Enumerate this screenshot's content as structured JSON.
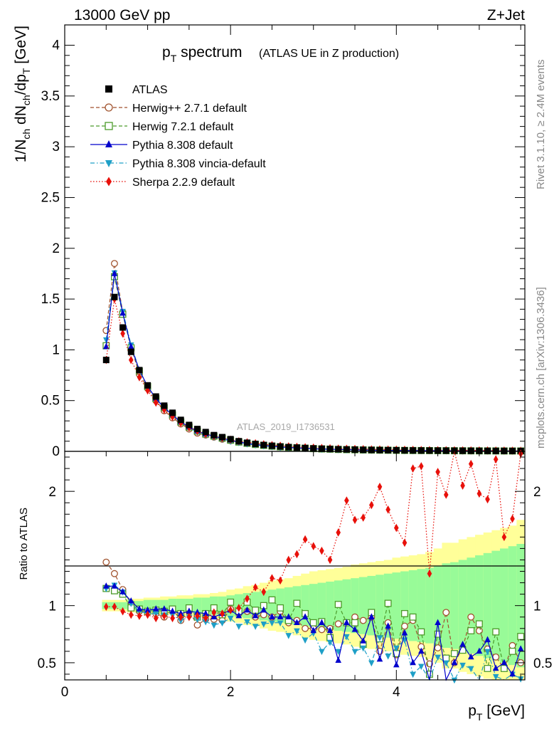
{
  "header": {
    "left": "13000 GeV pp",
    "right": "Z+Jet"
  },
  "side_labels": {
    "rivet": "Rivet 3.1.10, ≥ 2.4M events",
    "mcplots": "mcplots.cern.ch [arXiv:1306.3436]"
  },
  "watermark": "ATLAS_2019_I1736531",
  "legend": [
    {
      "key": "atlas",
      "label": "ATLAS",
      "color": "#000000",
      "marker": "square-filled",
      "line": "none"
    },
    {
      "key": "herwigpp",
      "label": "Herwig++ 2.7.1 default",
      "color": "#a0522d",
      "marker": "circle-open",
      "line": "dashed"
    },
    {
      "key": "herwig7",
      "label": "Herwig 7.2.1 default",
      "color": "#4c9a2a",
      "marker": "square-open",
      "line": "dashed"
    },
    {
      "key": "pythia",
      "label": "Pythia 8.308 default",
      "color": "#0000cc",
      "marker": "triangle-up-filled",
      "line": "solid"
    },
    {
      "key": "vincia",
      "label": "Pythia 8.308 vincia-default",
      "color": "#1e9fc7",
      "marker": "triangle-down-filled",
      "line": "dashdot"
    },
    {
      "key": "sherpa",
      "label": "Sherpa 2.2.9 default",
      "color": "#e8100a",
      "marker": "diamond-filled",
      "line": "dotted"
    }
  ],
  "chart_data": [
    {
      "type": "scatter",
      "title_main": "p",
      "title_sub": "T",
      "title_rest": " spectrum",
      "title_note": "(ATLAS UE in Z production)",
      "ylabel": "1/N_ch dN_ch/dp_T [GeV]",
      "ylim": [
        0,
        4.2
      ],
      "yticks": [
        0,
        0.5,
        1,
        1.5,
        2,
        2.5,
        3,
        3.5,
        4
      ],
      "ytick_labels": [
        "0",
        "0.5",
        "1",
        "1.5",
        "2",
        "2.5",
        "3",
        "3.5",
        "4"
      ],
      "xlim": [
        0,
        5.55
      ],
      "x": [
        0.5,
        0.6,
        0.7,
        0.8,
        0.9,
        1.0,
        1.1,
        1.2,
        1.3,
        1.4,
        1.5,
        1.6,
        1.7,
        1.8,
        1.9,
        2.0,
        2.1,
        2.2,
        2.3,
        2.4,
        2.5,
        2.6,
        2.7,
        2.8,
        2.9,
        3.0,
        3.1,
        3.2,
        3.3,
        3.4,
        3.5,
        3.6,
        3.7,
        3.8,
        3.9,
        4.0,
        4.1,
        4.2,
        4.3,
        4.4,
        4.5,
        4.6,
        4.7,
        4.8,
        4.9,
        5.0,
        5.1,
        5.2,
        5.3,
        5.4,
        5.5
      ],
      "series": [
        {
          "key": "atlas",
          "values": [
            0.9,
            1.52,
            1.22,
            0.98,
            0.8,
            0.65,
            0.54,
            0.45,
            0.38,
            0.31,
            0.26,
            0.22,
            0.19,
            0.16,
            0.14,
            0.12,
            0.1,
            0.085,
            0.073,
            0.063,
            0.055,
            0.048,
            0.042,
            0.037,
            0.033,
            0.029,
            0.026,
            0.023,
            0.021,
            0.019,
            0.017,
            0.015,
            0.014,
            0.013,
            0.012,
            0.011,
            0.01,
            0.009,
            0.0085,
            0.008,
            0.0075,
            0.007,
            0.0065,
            0.006,
            0.0056,
            0.0052,
            0.0049,
            0.0046,
            0.0043,
            0.004,
            0.0038
          ]
        },
        {
          "key": "herwigpp",
          "values": [
            1.19,
            1.85,
            1.37,
            1.03,
            0.76,
            0.62,
            0.5,
            0.4,
            0.33,
            0.27,
            0.22,
            0.18,
            0.16,
            0.14,
            0.12,
            0.105,
            0.09,
            0.077,
            0.067,
            0.058,
            0.05,
            0.043,
            0.038,
            0.034,
            0.03,
            0.026,
            0.023,
            0.021,
            0.019,
            0.017,
            0.015,
            0.013,
            0.012,
            0.011,
            0.01,
            0.009,
            0.0085,
            0.008,
            0.0075,
            0.007,
            0.0065,
            0.006,
            0.0055,
            0.0052,
            0.0048,
            0.0045,
            0.0042,
            0.004,
            0.0037,
            0.0035,
            0.0033
          ]
        },
        {
          "key": "herwig7",
          "values": [
            1.04,
            1.72,
            1.35,
            1.02,
            0.79,
            0.64,
            0.52,
            0.43,
            0.36,
            0.29,
            0.24,
            0.2,
            0.17,
            0.15,
            0.13,
            0.11,
            0.092,
            0.079,
            0.068,
            0.059,
            0.051,
            0.045,
            0.039,
            0.035,
            0.031,
            0.027,
            0.024,
            0.022,
            0.019,
            0.017,
            0.016,
            0.014,
            0.013,
            0.012,
            0.011,
            0.01,
            0.0092,
            0.0085,
            0.008,
            0.0075,
            0.007,
            0.0065,
            0.006,
            0.0056,
            0.0052,
            0.0049,
            0.0046,
            0.0043,
            0.004,
            0.0038,
            0.0036
          ]
        },
        {
          "key": "pythia",
          "values": [
            1.03,
            1.75,
            1.36,
            1.03,
            0.8,
            0.64,
            0.52,
            0.43,
            0.36,
            0.29,
            0.24,
            0.2,
            0.17,
            0.15,
            0.13,
            0.11,
            0.092,
            0.078,
            0.067,
            0.058,
            0.05,
            0.044,
            0.038,
            0.034,
            0.03,
            0.026,
            0.023,
            0.021,
            0.019,
            0.017,
            0.015,
            0.013,
            0.012,
            0.011,
            0.01,
            0.009,
            0.0085,
            0.008,
            0.0075,
            0.007,
            0.0065,
            0.006,
            0.0055,
            0.0052,
            0.0048,
            0.0045,
            0.0042,
            0.004,
            0.0037,
            0.0035,
            0.0033
          ]
        },
        {
          "key": "vincia",
          "values": [
            1.1,
            1.76,
            1.38,
            1.05,
            0.8,
            0.64,
            0.52,
            0.43,
            0.35,
            0.28,
            0.23,
            0.19,
            0.16,
            0.14,
            0.12,
            0.1,
            0.087,
            0.074,
            0.064,
            0.055,
            0.048,
            0.041,
            0.036,
            0.032,
            0.028,
            0.025,
            0.022,
            0.02,
            0.018,
            0.016,
            0.014,
            0.013,
            0.012,
            0.011,
            0.0098,
            0.009,
            0.0082,
            0.0076,
            0.007,
            0.0065,
            0.006,
            0.0056,
            0.0052,
            0.0048,
            0.0045,
            0.0042,
            0.0039,
            0.0037,
            0.0035,
            0.0033,
            0.0031
          ]
        },
        {
          "key": "sherpa",
          "values": [
            0.9,
            1.5,
            1.16,
            0.9,
            0.73,
            0.6,
            0.48,
            0.41,
            0.34,
            0.28,
            0.235,
            0.2,
            0.17,
            0.15,
            0.13,
            0.115,
            0.1,
            0.09,
            0.08,
            0.07,
            0.062,
            0.056,
            0.05,
            0.045,
            0.041,
            0.037,
            0.034,
            0.031,
            0.028,
            0.026,
            0.024,
            0.022,
            0.02,
            0.019,
            0.018,
            0.017,
            0.016,
            0.015,
            0.014,
            0.013,
            0.012,
            0.0115,
            0.011,
            0.0105,
            0.01,
            0.0095,
            0.009,
            0.0085,
            0.008,
            0.0075,
            0.007
          ]
        }
      ]
    },
    {
      "type": "scatter",
      "ylabel": "Ratio to ATLAS",
      "xlabel_main": "p",
      "xlabel_sub": "T",
      "xlabel_rest": " [GeV]",
      "xlim": [
        0,
        5.55
      ],
      "ylim": [
        0.35,
        2.35
      ],
      "xticks": [
        0,
        2,
        4
      ],
      "xtick_labels": [
        "0",
        "2",
        "4"
      ],
      "yticks": [
        0.5,
        1,
        2
      ],
      "ytick_labels": [
        "0.5",
        "1",
        "2"
      ],
      "reference_line": 1,
      "x": [
        0.5,
        0.6,
        0.7,
        0.8,
        0.9,
        1.0,
        1.1,
        1.2,
        1.3,
        1.4,
        1.5,
        1.6,
        1.7,
        1.8,
        1.9,
        2.0,
        2.1,
        2.2,
        2.3,
        2.4,
        2.5,
        2.6,
        2.7,
        2.8,
        2.9,
        3.0,
        3.1,
        3.2,
        3.3,
        3.4,
        3.5,
        3.6,
        3.7,
        3.8,
        3.9,
        4.0,
        4.1,
        4.2,
        4.3,
        4.4,
        4.5,
        4.6,
        4.7,
        4.8,
        4.9,
        5.0,
        5.1,
        5.2,
        5.3,
        5.4,
        5.5
      ],
      "band_outer": [
        0.05,
        0.05,
        0.05,
        0.06,
        0.06,
        0.07,
        0.07,
        0.08,
        0.08,
        0.09,
        0.09,
        0.1,
        0.1,
        0.11,
        0.12,
        0.14,
        0.15,
        0.17,
        0.18,
        0.2,
        0.22,
        0.23,
        0.24,
        0.26,
        0.28,
        0.3,
        0.31,
        0.32,
        0.33,
        0.34,
        0.36,
        0.37,
        0.38,
        0.39,
        0.4,
        0.42,
        0.43,
        0.44,
        0.45,
        0.47,
        0.5,
        0.55,
        0.55,
        0.58,
        0.6,
        0.62,
        0.64,
        0.66,
        0.68,
        0.7,
        0.75
      ],
      "band_inner": [
        0.03,
        0.03,
        0.03,
        0.04,
        0.04,
        0.05,
        0.05,
        0.05,
        0.06,
        0.06,
        0.06,
        0.07,
        0.07,
        0.08,
        0.08,
        0.09,
        0.1,
        0.11,
        0.12,
        0.13,
        0.14,
        0.15,
        0.16,
        0.17,
        0.18,
        0.19,
        0.2,
        0.21,
        0.22,
        0.23,
        0.24,
        0.25,
        0.26,
        0.27,
        0.28,
        0.29,
        0.3,
        0.31,
        0.32,
        0.33,
        0.35,
        0.37,
        0.38,
        0.4,
        0.42,
        0.44,
        0.46,
        0.48,
        0.5,
        0.52,
        0.54
      ],
      "series": [
        {
          "key": "herwigpp",
          "values": [
            1.38,
            1.28,
            1.14,
            1.02,
            0.95,
            0.95,
            0.93,
            0.9,
            0.97,
            0.87,
            0.95,
            0.83,
            0.88,
            0.88,
            0.87,
            0.97,
            0.93,
            0.95,
            0.9,
            0.92,
            0.9,
            0.95,
            0.85,
            0.87,
            0.8,
            0.8,
            0.79,
            0.8,
            0.84,
            0.85,
            0.9,
            0.87,
            0.9,
            0.6,
            0.85,
            0.57,
            0.82,
            0.87,
            0.64,
            0.49,
            0.63,
            0.94,
            0.5,
            0.63,
            0.9,
            0.78,
            0.62,
            0.55,
            0.45,
            0.65,
            0.5
          ]
        },
        {
          "key": "herwig7",
          "values": [
            1.15,
            1.13,
            1.1,
            0.98,
            0.97,
            0.95,
            0.96,
            0.95,
            0.97,
            0.93,
            0.98,
            0.9,
            0.93,
            0.98,
            0.92,
            1.03,
            0.95,
            1.03,
            0.96,
            1.0,
            1.05,
            0.98,
            0.87,
            1.02,
            0.93,
            0.85,
            0.86,
            0.72,
            1.01,
            0.85,
            0.85,
            0.66,
            0.94,
            0.71,
            1.02,
            0.58,
            0.93,
            0.9,
            0.77,
            0.4,
            0.75,
            0.54,
            0.58,
            0.61,
            0.78,
            0.84,
            0.45,
            0.77,
            0.45,
            0.6,
            0.73
          ]
        },
        {
          "key": "pythia",
          "values": [
            1.17,
            1.17,
            1.12,
            1.04,
            0.97,
            0.96,
            0.97,
            0.97,
            0.95,
            0.93,
            0.95,
            0.94,
            0.93,
            0.9,
            0.93,
            0.96,
            0.91,
            0.96,
            0.91,
            0.96,
            0.9,
            0.9,
            0.9,
            0.85,
            0.9,
            0.78,
            0.85,
            0.78,
            0.52,
            0.85,
            0.79,
            0.69,
            0.9,
            0.53,
            0.82,
            0.48,
            0.76,
            0.5,
            0.6,
            0.25,
            0.85,
            0.33,
            0.5,
            0.66,
            0.55,
            0.6,
            0.7,
            0.45,
            0.5,
            0.4,
            0.62
          ]
        },
        {
          "key": "vincia",
          "values": [
            1.15,
            1.18,
            1.12,
            1.02,
            0.95,
            0.93,
            0.93,
            0.92,
            0.92,
            0.87,
            0.9,
            0.88,
            0.86,
            0.83,
            0.85,
            0.89,
            0.82,
            0.86,
            0.82,
            0.84,
            0.85,
            0.85,
            0.74,
            0.78,
            0.7,
            0.76,
            0.6,
            0.68,
            0.6,
            0.73,
            0.6,
            0.63,
            0.5,
            0.72,
            0.56,
            0.63,
            0.7,
            0.4,
            0.47,
            0.25,
            0.55,
            0.5,
            0.35,
            0.48,
            0.45,
            0.33,
            0.6,
            0.38,
            0.3,
            0.4,
            0.36
          ]
        },
        {
          "key": "sherpa",
          "values": [
            0.99,
            0.99,
            0.95,
            0.92,
            0.91,
            0.92,
            0.89,
            0.91,
            0.89,
            0.9,
            0.9,
            0.91,
            0.89,
            0.94,
            0.93,
            0.96,
            0.98,
            1.06,
            1.16,
            1.12,
            1.24,
            1.22,
            1.4,
            1.45,
            1.58,
            1.52,
            1.48,
            1.4,
            1.64,
            1.92,
            1.75,
            1.77,
            1.88,
            2.04,
            1.84,
            1.68,
            1.55,
            2.2,
            2.22,
            1.28,
            2.17,
            1.97,
            2.4,
            2.05,
            2.24,
            1.98,
            1.93,
            2.28,
            1.6,
            1.76,
            2.33
          ]
        }
      ]
    }
  ]
}
